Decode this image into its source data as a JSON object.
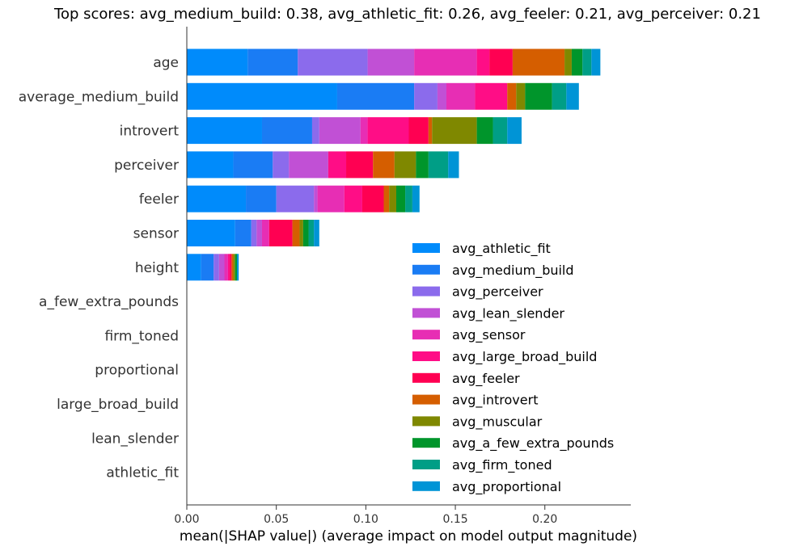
{
  "chart_data": {
    "type": "bar",
    "stacked": true,
    "orientation": "horizontal",
    "title": "Top scores: avg_medium_build: 0.38, avg_athletic_fit: 0.26, avg_feeler: 0.21, avg_perceiver: 0.21",
    "xlabel": "mean(|SHAP value|) (average impact on model output magnitude)",
    "ylabel": "",
    "xlim": [
      0,
      0.248
    ],
    "x_ticks": [
      0.0,
      0.05,
      0.1,
      0.15,
      0.2
    ],
    "x_tick_labels": [
      "0.00",
      "0.05",
      "0.10",
      "0.15",
      "0.20"
    ],
    "grid": false,
    "legend_position": "lower-right",
    "categories": [
      "age",
      "average_medium_build",
      "introvert",
      "perceiver",
      "feeler",
      "sensor",
      "height",
      "a_few_extra_pounds",
      "firm_toned",
      "proportional",
      "large_broad_build",
      "lean_slender",
      "athletic_fit"
    ],
    "series": [
      {
        "name": "avg_athletic_fit",
        "color": "#008bfb",
        "values": [
          0.034,
          0.084,
          0.042,
          0.026,
          0.033,
          0.027,
          0.008,
          0,
          0,
          0,
          0,
          0,
          0
        ]
      },
      {
        "name": "avg_medium_build",
        "color": "#1a7cf4",
        "values": [
          0.028,
          0.043,
          0.028,
          0.022,
          0.017,
          0.009,
          0.007,
          0,
          0,
          0,
          0,
          0,
          0
        ]
      },
      {
        "name": "avg_perceiver",
        "color": "#8b6bec",
        "values": [
          0.039,
          0.013,
          0.004,
          0.009,
          0.021,
          0.003,
          0.003,
          0,
          0,
          0,
          0,
          0,
          0
        ]
      },
      {
        "name": "avg_lean_slender",
        "color": "#c150d5",
        "values": [
          0.026,
          0.005,
          0.023,
          0.022,
          0.002,
          0.003,
          0.003,
          0,
          0,
          0,
          0,
          0,
          0
        ]
      },
      {
        "name": "avg_sensor",
        "color": "#e72eb4",
        "values": [
          0.035,
          0.016,
          0.004,
          0.0,
          0.015,
          0.004,
          0.002,
          0,
          0,
          0,
          0,
          0,
          0
        ]
      },
      {
        "name": "avg_large_broad_build",
        "color": "#ff0d86",
        "values": [
          0.007,
          0.018,
          0.023,
          0.01,
          0.01,
          0.0,
          0.001,
          0,
          0,
          0,
          0,
          0,
          0
        ]
      },
      {
        "name": "avg_feeler",
        "color": "#ff0052",
        "values": [
          0.013,
          0.0,
          0.011,
          0.015,
          0.012,
          0.013,
          0.001,
          0,
          0,
          0,
          0,
          0,
          0
        ]
      },
      {
        "name": "avg_introvert",
        "color": "#d55e00",
        "values": [
          0.029,
          0.005,
          0.002,
          0.012,
          0.003,
          0.004,
          0.001,
          0,
          0,
          0,
          0,
          0,
          0
        ]
      },
      {
        "name": "avg_muscular",
        "color": "#7f8800",
        "values": [
          0.004,
          0.005,
          0.025,
          0.012,
          0.004,
          0.002,
          0.001,
          0,
          0,
          0,
          0,
          0,
          0
        ]
      },
      {
        "name": "avg_a_few_extra_pounds",
        "color": "#00952b",
        "values": [
          0.006,
          0.015,
          0.009,
          0.007,
          0.005,
          0.003,
          0.001,
          0,
          0,
          0,
          0,
          0,
          0
        ]
      },
      {
        "name": "avg_firm_toned",
        "color": "#009e86",
        "values": [
          0.005,
          0.008,
          0.008,
          0.011,
          0.004,
          0.003,
          0.0,
          0,
          0,
          0,
          0,
          0,
          0
        ]
      },
      {
        "name": "avg_proportional",
        "color": "#0094d6",
        "values": [
          0.005,
          0.007,
          0.008,
          0.006,
          0.004,
          0.003,
          0.001,
          0,
          0,
          0,
          0,
          0,
          0
        ]
      }
    ]
  }
}
